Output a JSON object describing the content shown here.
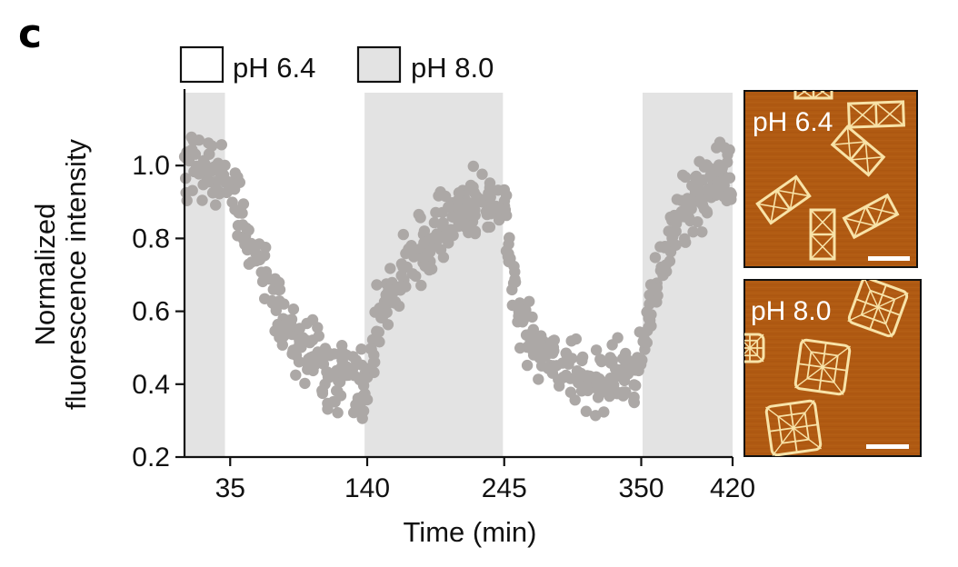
{
  "panel_label": "c",
  "chart_data": {
    "type": "scatter",
    "title": "",
    "xlabel": "Time (min)",
    "ylabel": [
      "Normalized",
      "fluorescence intensity"
    ],
    "xlim": [
      0,
      420
    ],
    "ylim": [
      0.2,
      1.2
    ],
    "x_ticks": [
      35,
      140,
      245,
      350,
      420
    ],
    "x_tick_labels": [
      "35",
      "140",
      "245",
      "350",
      "420"
    ],
    "y_ticks": [
      0.2,
      0.4,
      0.6,
      0.8,
      1.0
    ],
    "y_tick_labels": [
      "0.2",
      "0.4",
      "0.6",
      "0.8",
      "1.0"
    ],
    "grid": false,
    "legend_position": "top-left",
    "legend": [
      {
        "label": "pH 6.4",
        "fill": "#ffffff"
      },
      {
        "label": "pH 8.0",
        "fill": "#e3e3e3"
      }
    ],
    "shaded_intervals": [
      [
        0,
        31
      ],
      [
        138,
        244
      ],
      [
        351,
        420
      ]
    ],
    "shade_color": "#e3e3e3",
    "point_color": "#aca8a6",
    "series": [
      {
        "name": "normalized fluorescence",
        "n_points": 700,
        "trend": {
          "x": [
            0,
            15,
            30,
            40,
            60,
            80,
            100,
            120,
            138,
            150,
            170,
            190,
            210,
            230,
            244,
            255,
            270,
            290,
            310,
            330,
            345,
            351,
            360,
            370,
            380,
            395,
            410,
            420
          ],
          "y": [
            1.0,
            1.0,
            0.99,
            0.88,
            0.7,
            0.52,
            0.46,
            0.41,
            0.39,
            0.6,
            0.71,
            0.8,
            0.87,
            0.9,
            0.89,
            0.62,
            0.48,
            0.44,
            0.43,
            0.42,
            0.43,
            0.52,
            0.67,
            0.79,
            0.88,
            0.93,
            0.96,
            0.97
          ]
        },
        "spread": 0.045
      }
    ]
  },
  "insets": [
    {
      "label": "pH 6.4",
      "structure": "rectangular"
    },
    {
      "label": "pH 8.0",
      "structure": "square"
    }
  ],
  "colors": {
    "afm_background": "#b05a12",
    "afm_structure": "#f8e3a8",
    "scale_bar": "#ffffff"
  }
}
